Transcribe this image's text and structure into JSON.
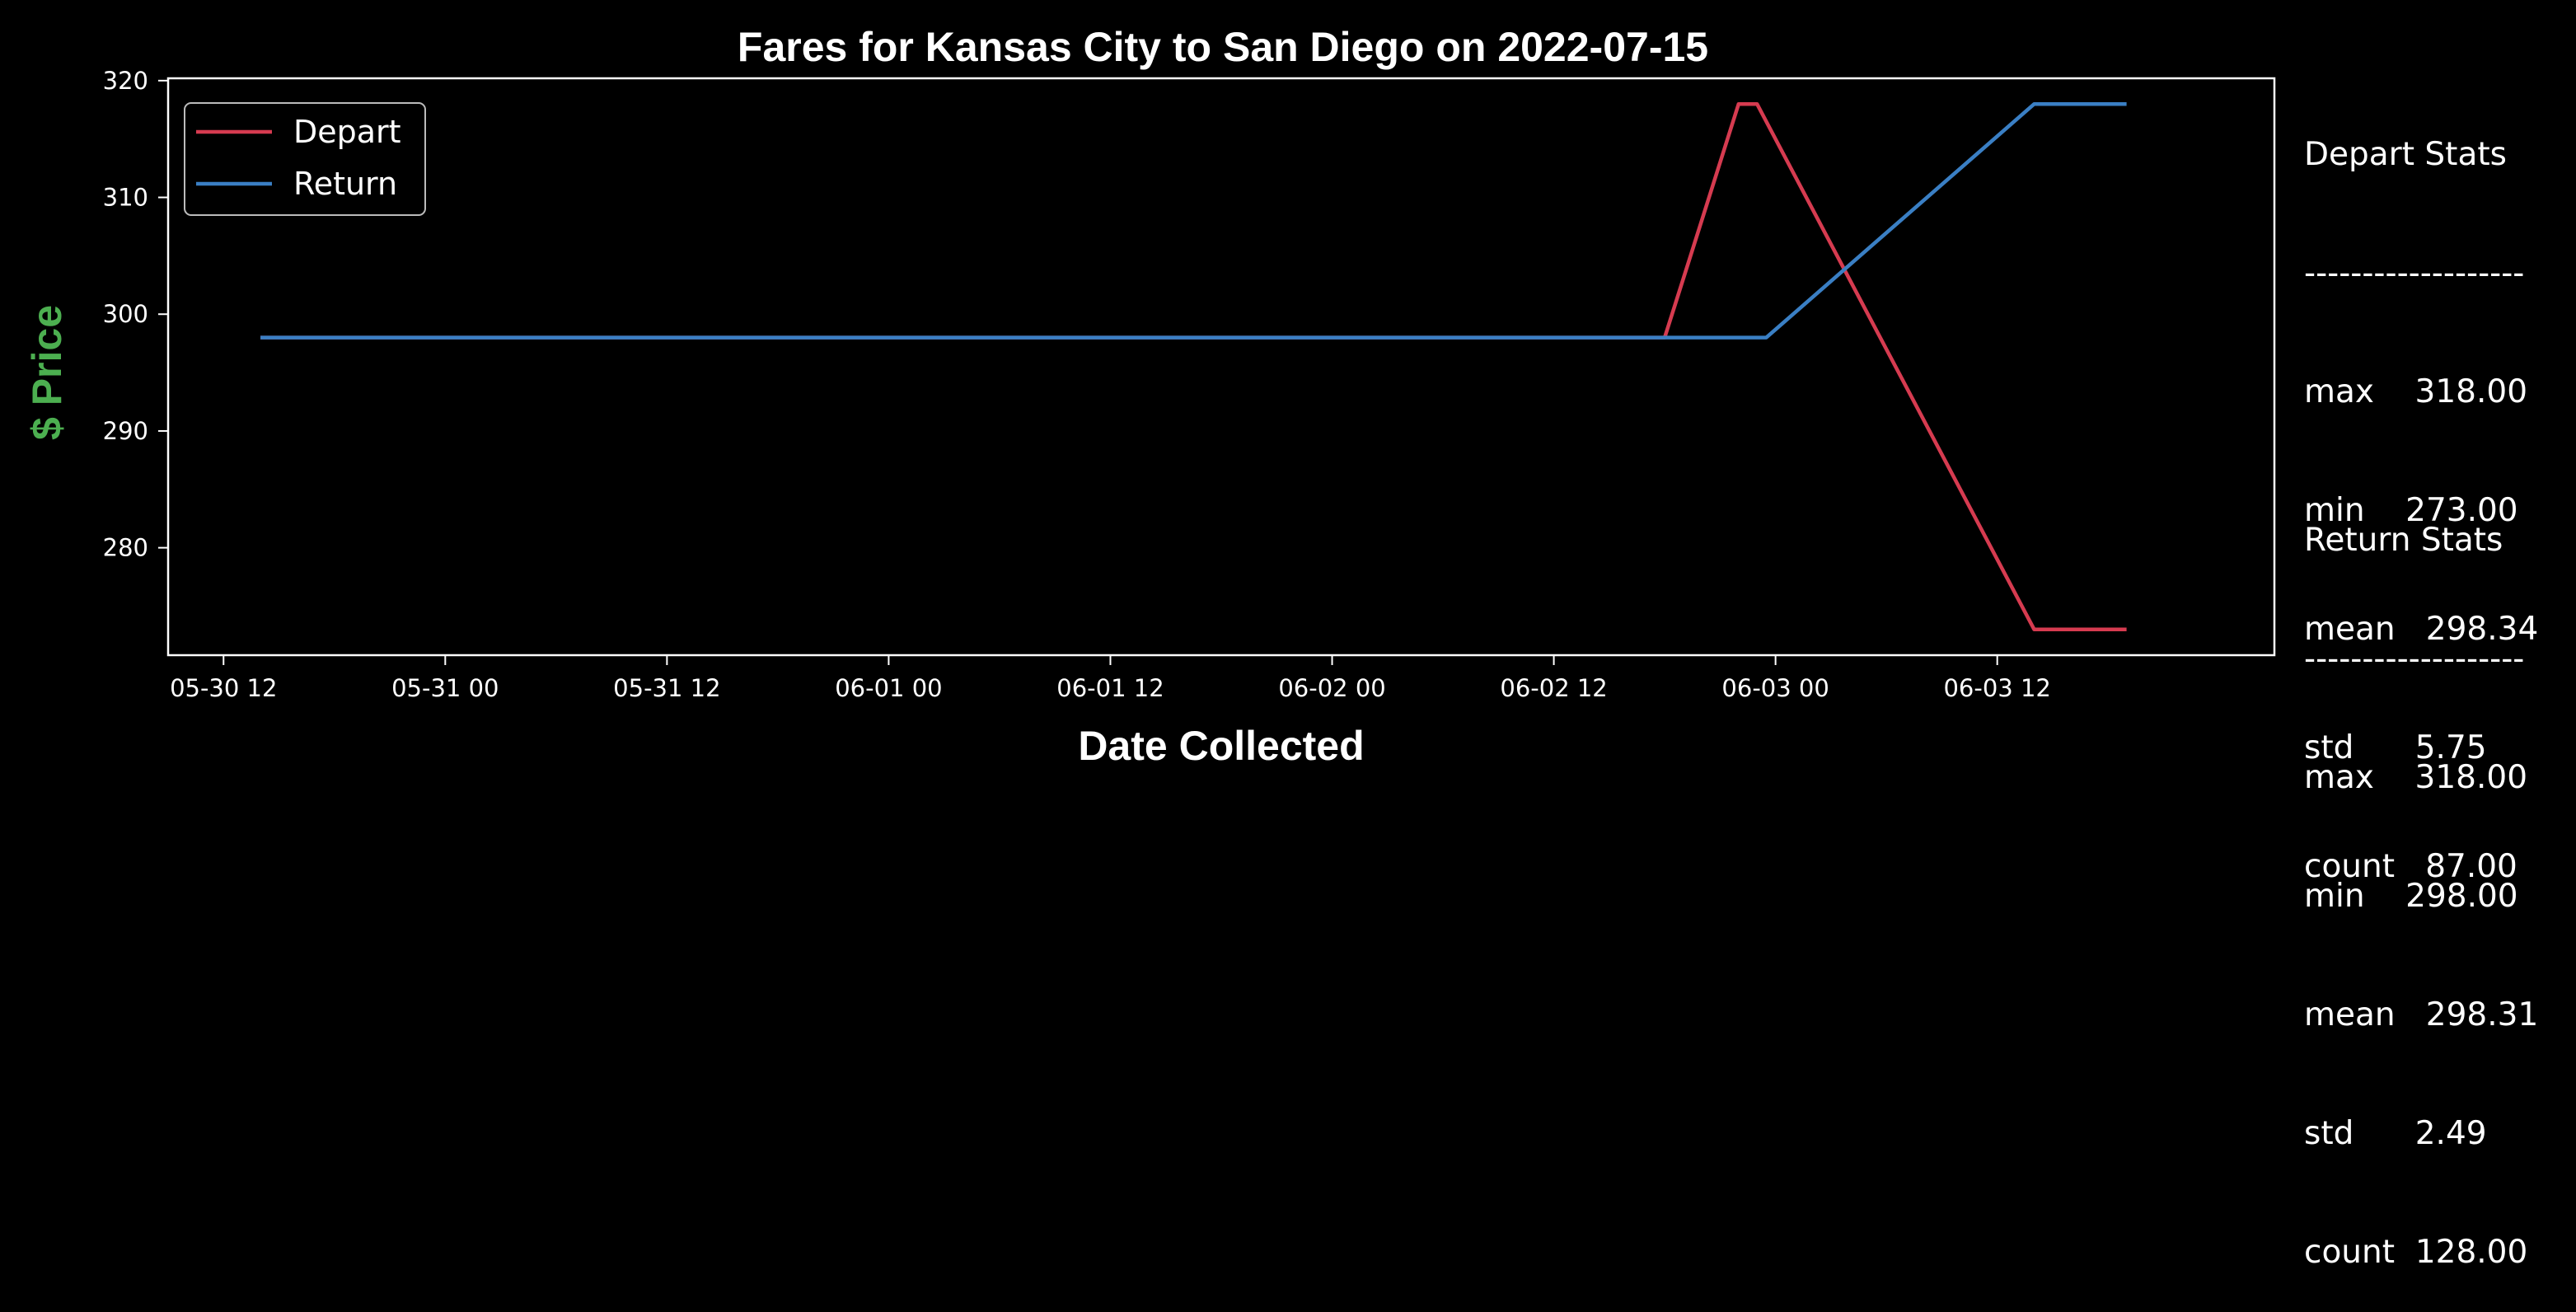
{
  "chart_data": {
    "type": "line",
    "title": "Fares for Kansas City to San Diego on 2022-07-15",
    "xlabel": "Date Collected",
    "ylabel": "$ Price",
    "ylabel_color": "#4caf50",
    "x_ticks": [
      "05-30 12",
      "05-31 00",
      "05-31 12",
      "06-01 00",
      "06-01 12",
      "06-02 00",
      "06-02 12",
      "06-03 00",
      "06-03 12"
    ],
    "y_ticks": [
      280,
      290,
      300,
      310,
      320
    ],
    "xlim": [
      "2022-05-30T09:00",
      "2022-06-04T03:00"
    ],
    "ylim": [
      270.8,
      320.2
    ],
    "grid": false,
    "legend_position": "top-left",
    "series": [
      {
        "name": "Depart",
        "color": "#d63b50",
        "points": [
          [
            "2022-05-30T14:00",
            298
          ],
          [
            "2022-06-02T18:00",
            298
          ],
          [
            "2022-06-02T22:00",
            318
          ],
          [
            "2022-06-02T23:00",
            318
          ],
          [
            "2022-06-03T14:00",
            273
          ],
          [
            "2022-06-03T19:00",
            273
          ]
        ]
      },
      {
        "name": "Return",
        "color": "#3a7fc4",
        "points": [
          [
            "2022-05-30T14:00",
            298
          ],
          [
            "2022-06-02T23:30",
            298
          ],
          [
            "2022-06-03T14:00",
            318
          ],
          [
            "2022-06-03T19:00",
            318
          ]
        ]
      }
    ]
  },
  "stats": {
    "depart": {
      "title": "Depart Stats",
      "divider": "-------------------",
      "max": "max    318.00",
      "min": "min    273.00",
      "mean": "mean   298.34",
      "std": "std      5.75",
      "count": "count   87.00"
    },
    "return": {
      "title": "Return Stats",
      "divider": "-------------------",
      "max": "max    318.00",
      "min": "min    298.00",
      "mean": "mean   298.31",
      "std": "std      2.49",
      "count": "count  128.00"
    }
  }
}
